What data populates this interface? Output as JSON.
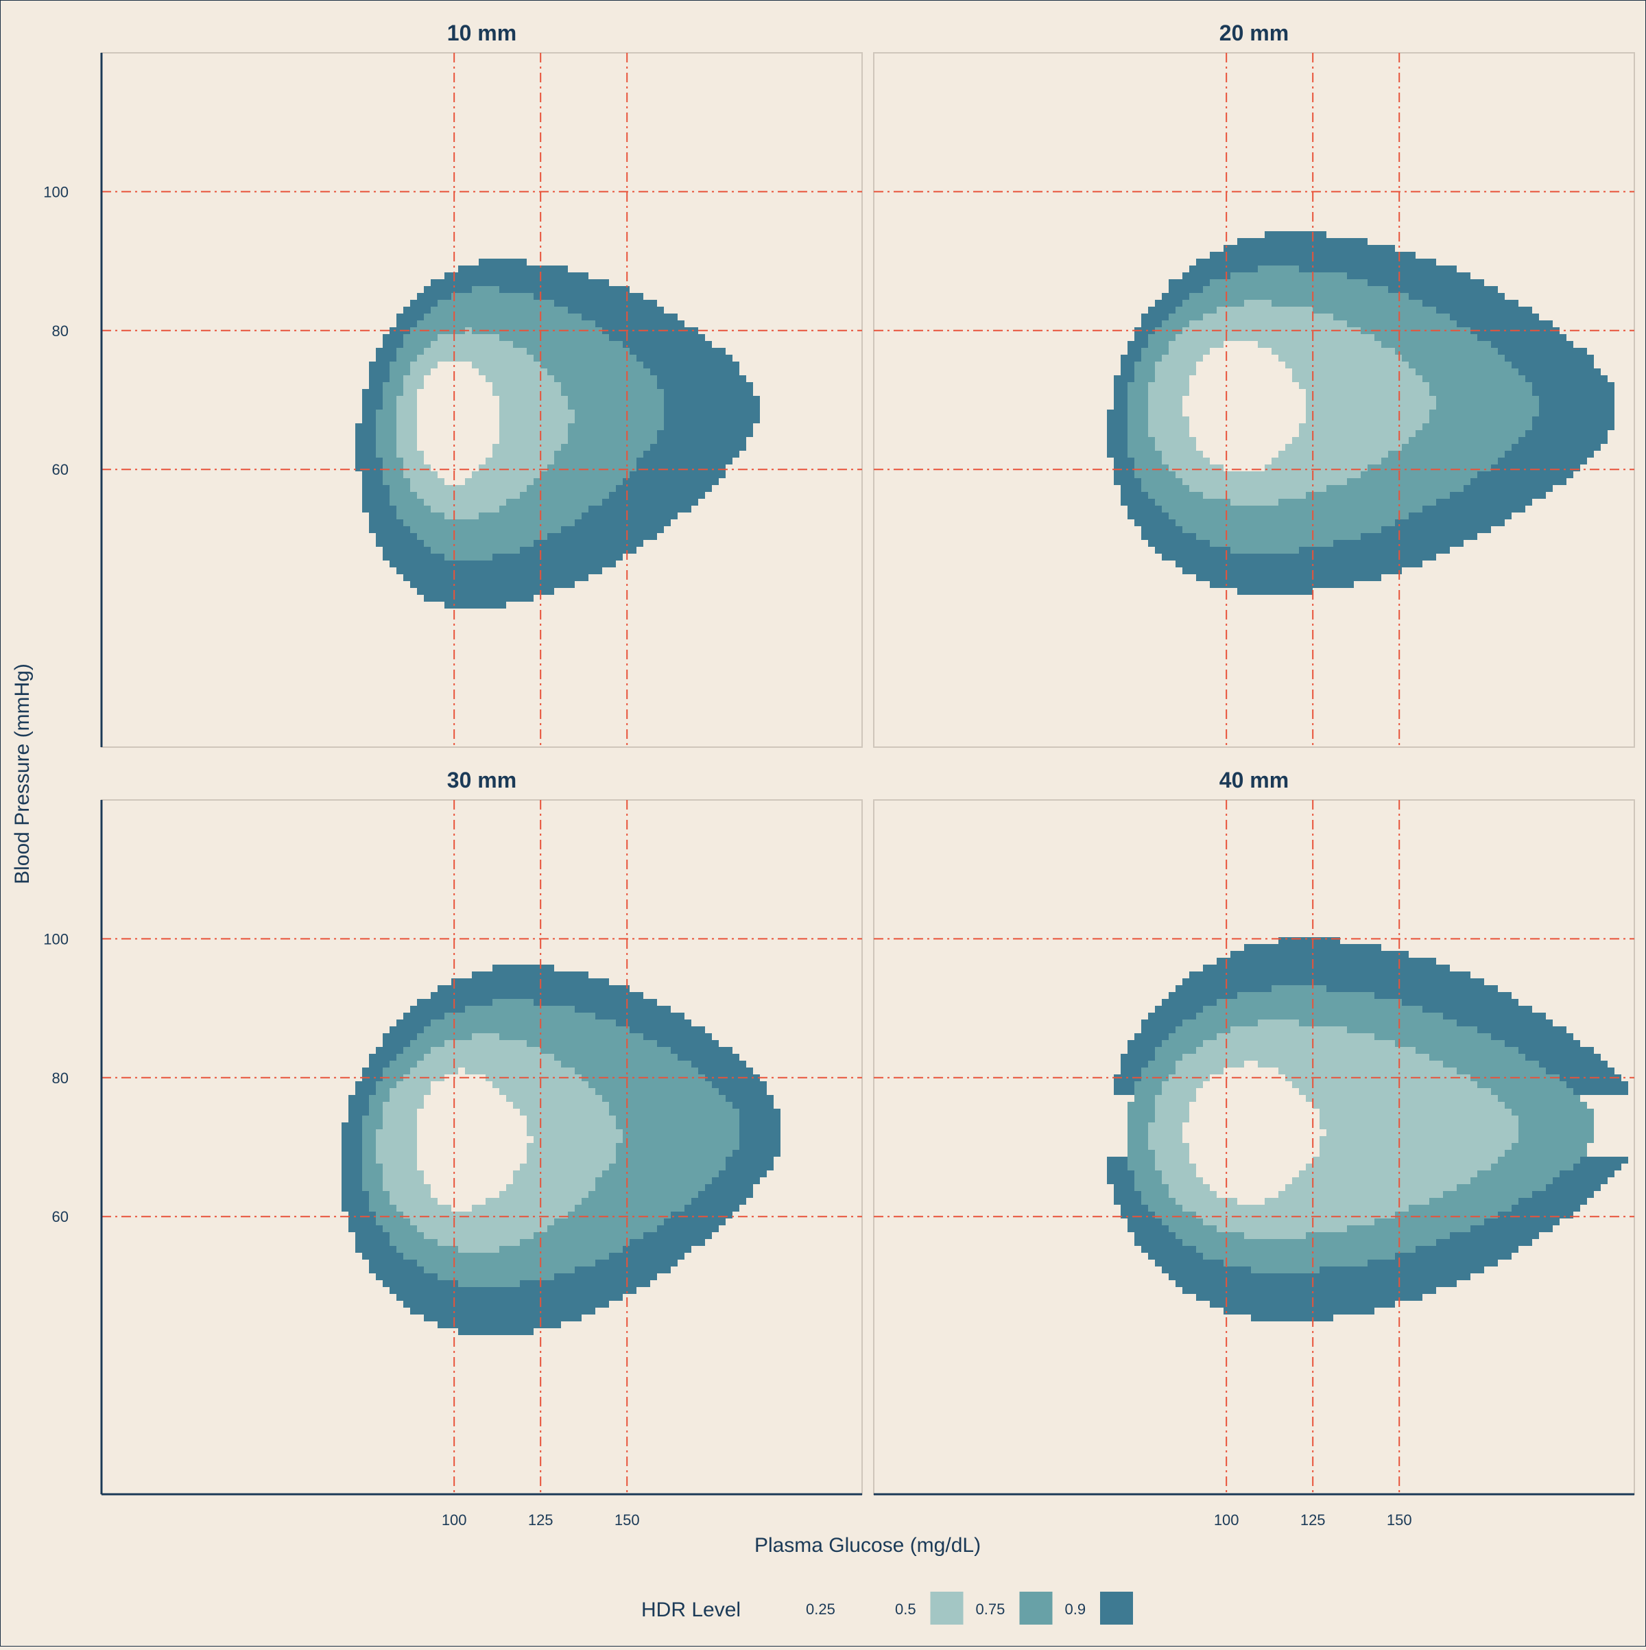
{
  "chart_data": {
    "type": "heatmap",
    "subtype": "faceted highest-density-region plot",
    "xlabel": "Plasma Glucose (mg/dL)",
    "ylabel": "Blood Pressure (mmHg)",
    "xlim": [
      -2,
      218
    ],
    "ylim": [
      20,
      120
    ],
    "x_ticks": [
      100,
      125,
      150
    ],
    "y_ticks": [
      60,
      80,
      100
    ],
    "x_tick_labels": [
      "100",
      "125",
      "150"
    ],
    "y_tick_labels": [
      "60",
      "80",
      "100"
    ],
    "reference_lines": {
      "x": [
        100,
        125,
        150
      ],
      "y": [
        60,
        80,
        100
      ],
      "color": "#e8533a",
      "style": "dash-dot"
    },
    "legend": {
      "title": "HDR Level",
      "position": "bottom",
      "items": [
        {
          "label": "0.25",
          "color": "#f3ebe0"
        },
        {
          "label": "0.5",
          "color": "#a3c6c4"
        },
        {
          "label": "0.75",
          "color": "#68a1a7"
        },
        {
          "label": "0.9",
          "color": "#3e7a92"
        }
      ]
    },
    "facets": [
      {
        "title": "10 mm",
        "regions": [
          {
            "level": "0.9",
            "cx": 108,
            "cy": 66,
            "rx_left": 36,
            "rx_right": 80,
            "ry_top": 24,
            "ry_bottom": 26,
            "skew": 0.25
          },
          {
            "level": "0.75",
            "cx": 106,
            "cy": 67,
            "rx_left": 28,
            "rx_right": 55,
            "ry_top": 19,
            "ry_bottom": 20,
            "skew": 0.2
          },
          {
            "level": "0.5",
            "cx": 103,
            "cy": 67,
            "rx_left": 20,
            "rx_right": 31,
            "ry_top": 13,
            "ry_bottom": 14,
            "skew": 0.1
          },
          {
            "level": "0.25",
            "cx": 100,
            "cy": 67,
            "rx_left": 11,
            "rx_right": 14,
            "ry_top": 9,
            "ry_bottom": 9,
            "skew": 0.0
          }
        ]
      },
      {
        "title": "20 mm",
        "regions": [
          {
            "level": "0.9",
            "cx": 115,
            "cy": 67,
            "rx_left": 49,
            "rx_right": 98,
            "ry_top": 27,
            "ry_bottom": 25,
            "skew": 0.15
          },
          {
            "level": "0.75",
            "cx": 112,
            "cy": 68,
            "rx_left": 41,
            "rx_right": 78,
            "ry_top": 21,
            "ry_bottom": 20,
            "skew": 0.12
          },
          {
            "level": "0.5",
            "cx": 108,
            "cy": 69,
            "rx_left": 31,
            "rx_right": 52,
            "ry_top": 15,
            "ry_bottom": 14,
            "skew": 0.08
          },
          {
            "level": "0.25",
            "cx": 105,
            "cy": 69,
            "rx_left": 17,
            "rx_right": 18,
            "ry_top": 9.5,
            "ry_bottom": 9.5,
            "skew": 0.0
          }
        ]
      },
      {
        "title": "30 mm",
        "regions": [
          {
            "level": "0.9",
            "cx": 115,
            "cy": 70,
            "rx_left": 48,
            "rx_right": 80,
            "ry_top": 26,
            "ry_bottom": 27,
            "skew": 0.22
          },
          {
            "level": "0.75",
            "cx": 113,
            "cy": 71,
            "rx_left": 40,
            "rx_right": 70,
            "ry_top": 20,
            "ry_bottom": 21,
            "skew": 0.18
          },
          {
            "level": "0.5",
            "cx": 108,
            "cy": 71,
            "rx_left": 30,
            "rx_right": 40,
            "ry_top": 15,
            "ry_bottom": 16,
            "skew": 0.1
          },
          {
            "level": "0.25",
            "cx": 102,
            "cy": 71,
            "rx_left": 13,
            "rx_right": 20,
            "ry_top": 10,
            "ry_bottom": 10,
            "skew": 0.0
          }
        ]
      },
      {
        "title": "40 mm",
        "regions": [
          {
            "level": "0.9",
            "cx": 120,
            "cy": 72,
            "rx_left": 55,
            "rx_right": 100,
            "ry_top": 28,
            "ry_bottom": 27,
            "skew": 0.1
          },
          {
            "level": "0.75",
            "cx": 117,
            "cy": 72,
            "rx_left": 46,
            "rx_right": 90,
            "ry_top": 21,
            "ry_bottom": 20,
            "skew": 0.08
          },
          {
            "level": "0.5",
            "cx": 113,
            "cy": 72,
            "rx_left": 35,
            "rx_right": 72,
            "ry_top": 16,
            "ry_bottom": 15,
            "skew": 0.06
          },
          {
            "level": "0.25",
            "cx": 107,
            "cy": 72,
            "rx_left": 19,
            "rx_right": 21,
            "ry_top": 10,
            "ry_bottom": 10,
            "skew": 0.0
          }
        ]
      }
    ]
  }
}
